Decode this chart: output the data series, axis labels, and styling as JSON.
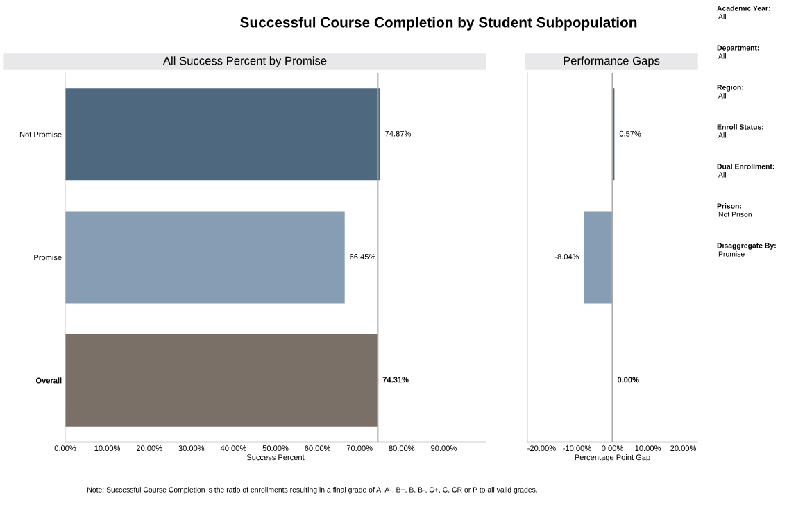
{
  "chart_data": [
    {
      "type": "bar",
      "orientation": "horizontal",
      "title": "All Success Percent by Promise",
      "xlabel": "Success Percent",
      "categories": [
        "Not Promise",
        "Promise",
        "Overall"
      ],
      "values": [
        74.87,
        66.45,
        74.31
      ],
      "colors": [
        "#4e6880",
        "#869db3",
        "#7a7068"
      ],
      "value_labels": [
        "74.87%",
        "66.45%",
        "74.31%"
      ],
      "xlim": [
        0,
        100
      ],
      "xticks": [
        {
          "value": 0,
          "label": "0.00%"
        },
        {
          "value": 10,
          "label": "10.00%"
        },
        {
          "value": 20,
          "label": "20.00%"
        },
        {
          "value": 30,
          "label": "30.00%"
        },
        {
          "value": 40,
          "label": "40.00%"
        },
        {
          "value": 50,
          "label": "50.00%"
        },
        {
          "value": 60,
          "label": "60.00%"
        },
        {
          "value": 70,
          "label": "70.00%"
        },
        {
          "value": 80,
          "label": "80.00%"
        },
        {
          "value": 90,
          "label": "90.00%"
        }
      ],
      "ref_lines": [
        {
          "axis": "x",
          "value": 74.31,
          "color": "#aaaaaa"
        }
      ],
      "grid": false,
      "legend": false,
      "annotations": [
        "Successful Course Completion by Student Subpopulation",
        "Note: Successful Course Completion is the ratio of enrollments resulting in a final grade of A, A-, B+, B, B-, C+, C, CR or P to all valid grades."
      ]
    },
    {
      "type": "bar",
      "orientation": "horizontal",
      "title": "Performance Gaps",
      "xlabel": "Percentage Point Gap",
      "categories": [
        null,
        null,
        null
      ],
      "values": [
        0.57,
        -8.04,
        0.0
      ],
      "colors": [
        "#4e6880",
        "#869db3",
        "#7a7068"
      ],
      "value_labels": [
        "0.57%",
        "-8.04%",
        "0.00%"
      ],
      "xlim": [
        -24,
        24
      ],
      "xticks": [
        {
          "value": -20,
          "label": "-20.00%"
        },
        {
          "value": -10,
          "label": "-10.00%"
        },
        {
          "value": 0,
          "label": "0.00%"
        },
        {
          "value": 10,
          "label": "10.00%"
        },
        {
          "value": 20,
          "label": "20.00%"
        }
      ],
      "ref_lines": [
        {
          "axis": "x",
          "value": 0,
          "color": "#aaaaaa"
        }
      ],
      "tick_labels": "x",
      "grid": false,
      "legend": false
    },
    {
      "type": "other",
      "annotations": [
        "Academic Year:\nAll",
        "Department:\nAll",
        "Region:\nAll",
        "Enroll Status:\nAll",
        "Dual Enrollment:\nAll",
        "Prison:\nNot Prison",
        "Disaggregate By:\nPromise"
      ]
    }
  ]
}
